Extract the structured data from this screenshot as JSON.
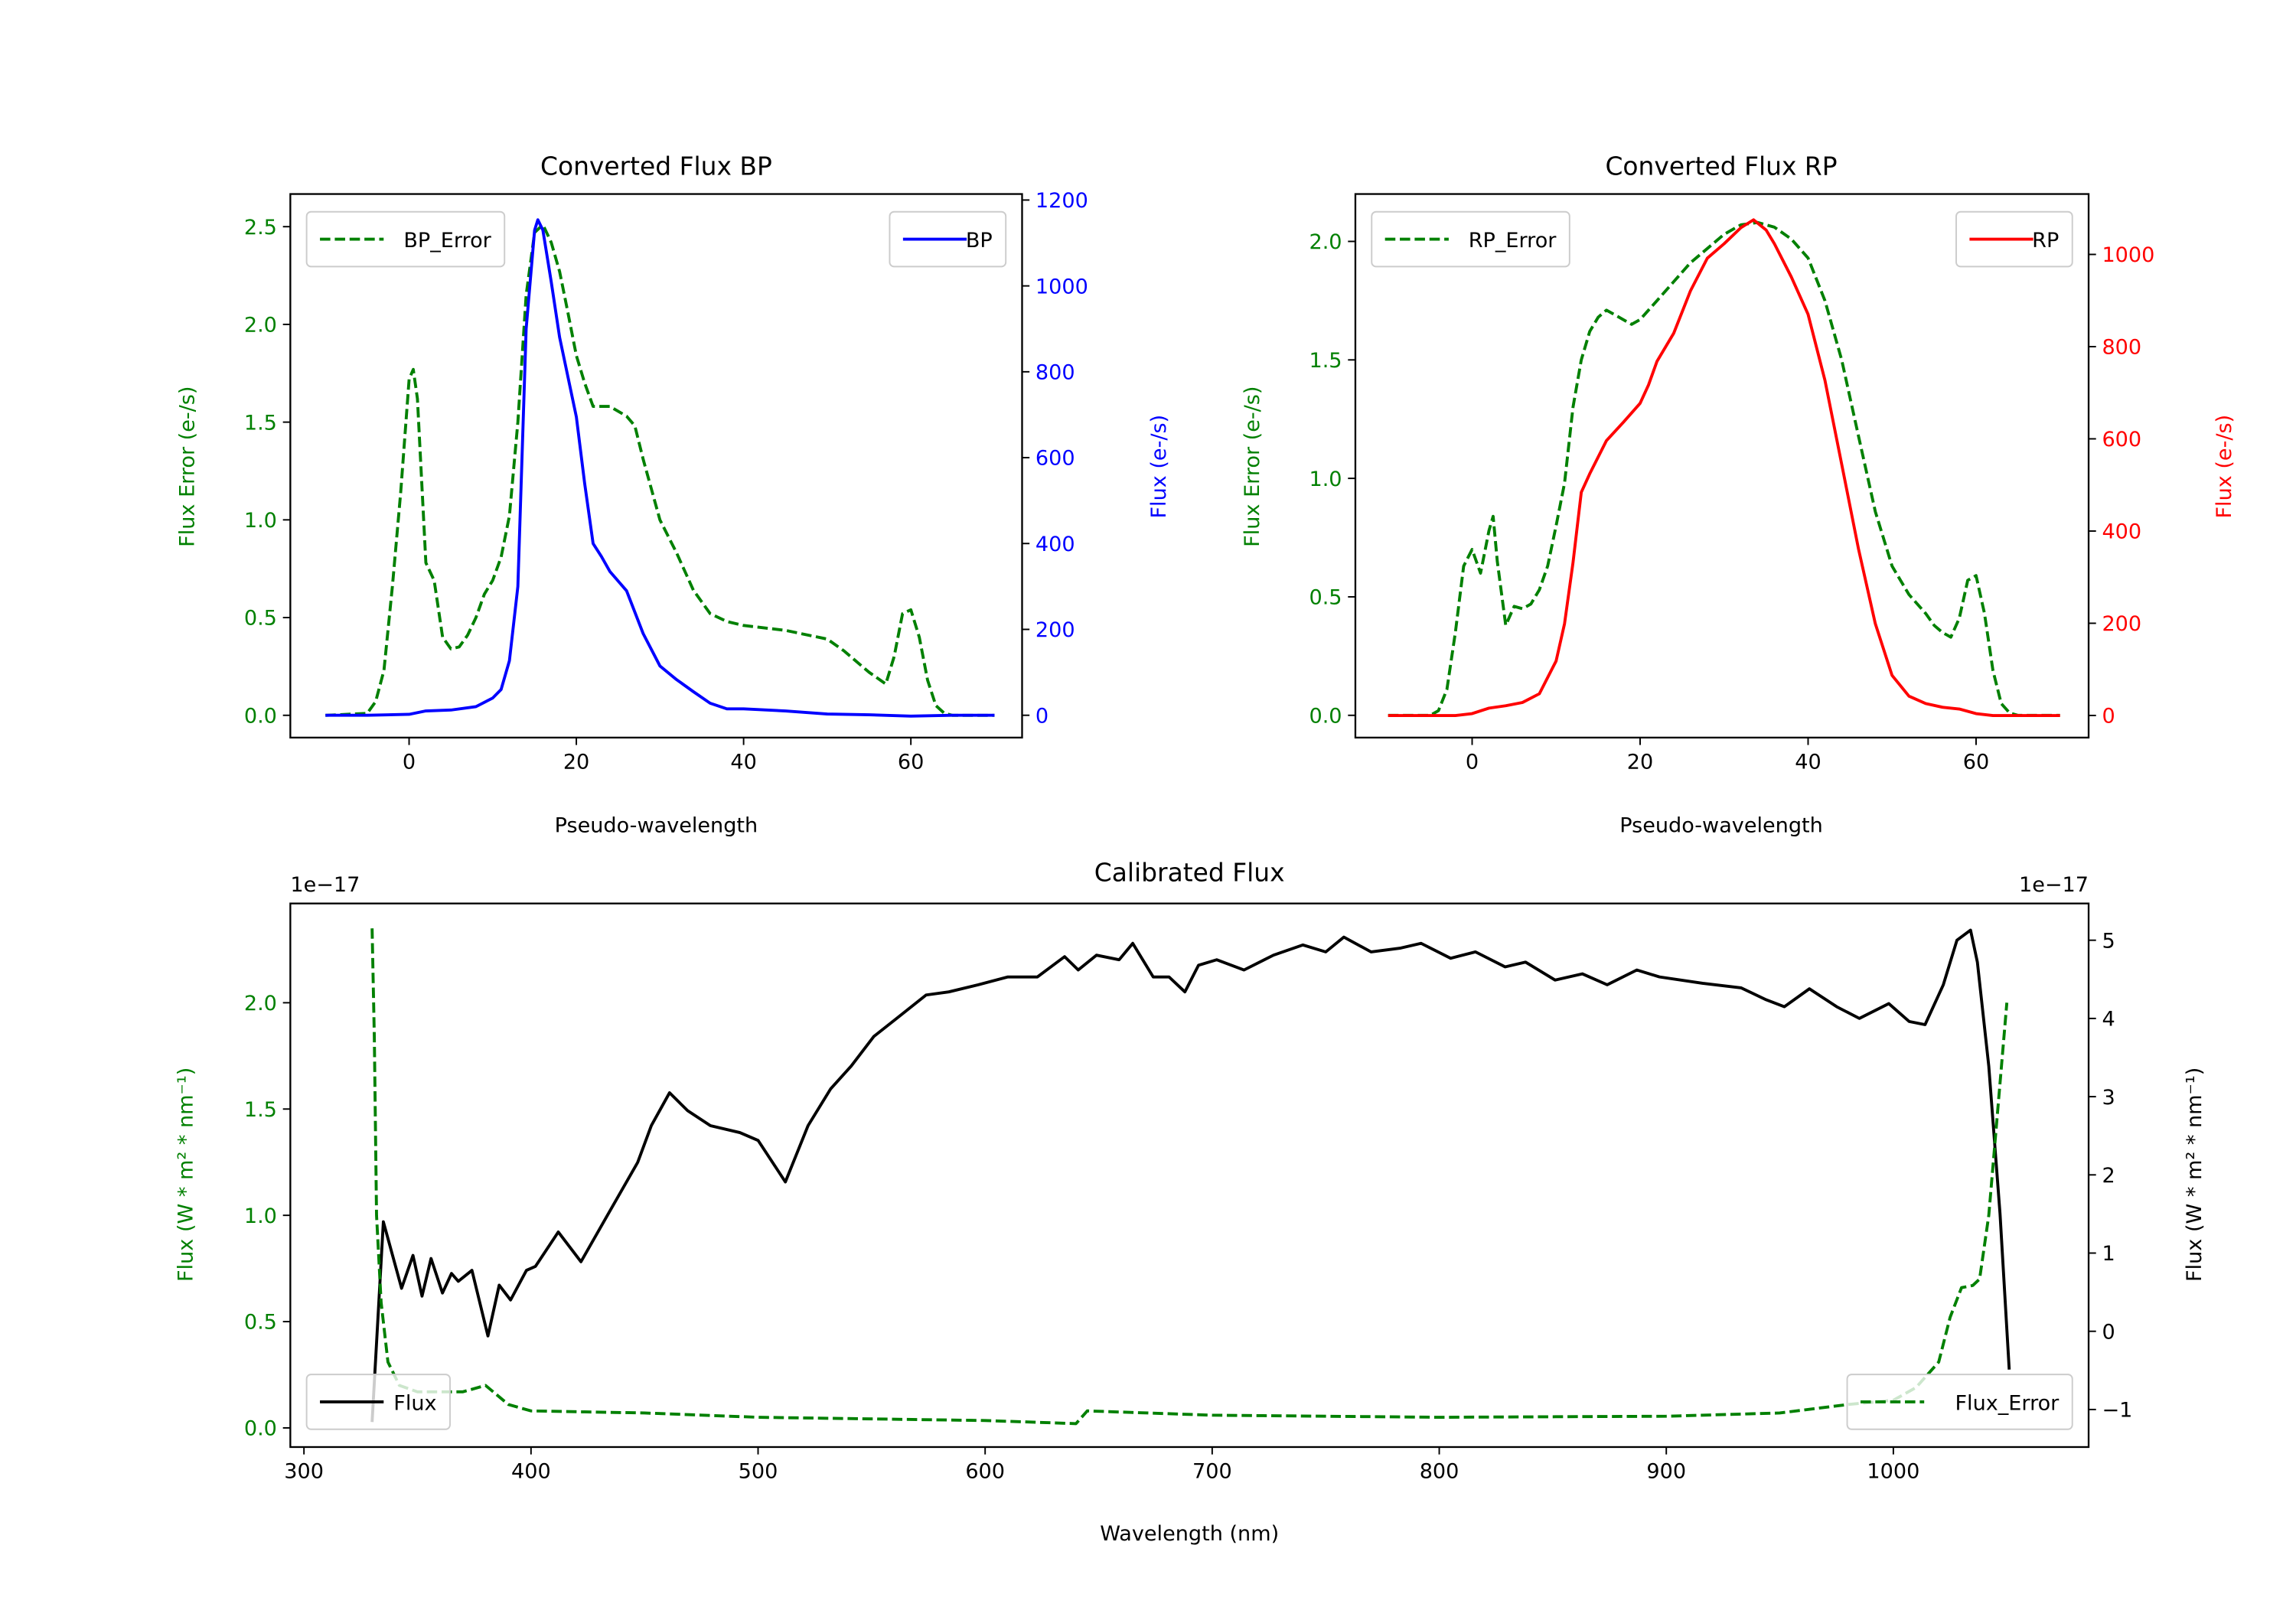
{
  "chart_data": [
    {
      "id": "bp",
      "type": "line",
      "title": "Converted Flux BP",
      "xlabel": "Pseudo-wavelength",
      "ylabel_left": "Flux Error (e-/s)",
      "ylabel_right": "Flux (e-/s)",
      "xlim": [
        -14.2,
        73.3
      ],
      "ylim_left": [
        -0.114,
        2.667
      ],
      "ylim_right": [
        -52,
        1214
      ],
      "xticks": [
        0,
        20,
        40,
        60
      ],
      "yticks_left": [
        "0.0",
        "0.5",
        "1.0",
        "1.5",
        "2.0",
        "2.5"
      ],
      "yticks_right": [
        "0",
        "200",
        "400",
        "600",
        "800",
        "1000",
        "1200"
      ],
      "left_color": "#008000",
      "right_color": "#0000ff",
      "series": [
        {
          "name": "BP_Error",
          "axis": "left",
          "style": "dashed",
          "color": "#008000",
          "legend": "upper-left",
          "x": [
            -10,
            -5,
            -4,
            -3,
            -2,
            -1,
            0,
            0.5,
            1,
            2,
            3,
            4,
            5,
            6,
            7,
            8,
            9,
            10,
            11,
            12,
            13,
            14,
            15,
            16,
            17,
            18,
            19,
            20,
            21,
            22,
            24,
            26,
            27,
            28,
            30,
            32,
            34,
            36,
            38,
            40,
            45,
            50,
            52,
            55,
            57,
            58,
            59,
            60,
            61,
            62,
            63,
            64,
            65,
            70
          ],
          "y": [
            0,
            0.01,
            0.07,
            0.23,
            0.66,
            1.14,
            1.72,
            1.77,
            1.62,
            0.78,
            0.69,
            0.4,
            0.34,
            0.35,
            0.41,
            0.5,
            0.62,
            0.69,
            0.81,
            1.02,
            1.5,
            2.15,
            2.47,
            2.51,
            2.42,
            2.27,
            2.06,
            1.84,
            1.7,
            1.58,
            1.58,
            1.53,
            1.48,
            1.31,
            1.0,
            0.83,
            0.64,
            0.52,
            0.48,
            0.46,
            0.435,
            0.39,
            0.33,
            0.22,
            0.16,
            0.3,
            0.52,
            0.54,
            0.4,
            0.18,
            0.05,
            0.01,
            0,
            0
          ]
        },
        {
          "name": "BP",
          "axis": "right",
          "style": "solid",
          "color": "#0000ff",
          "legend": "upper-right",
          "x": [
            -10,
            -5,
            0,
            2,
            5,
            8,
            10,
            11,
            12,
            13,
            14,
            15,
            15.4,
            16,
            17,
            18,
            20,
            21,
            22,
            23,
            24,
            26,
            28,
            30,
            32,
            34,
            36,
            38,
            40,
            45,
            50,
            55,
            60,
            65,
            70
          ],
          "y": [
            0,
            0,
            2,
            10,
            12,
            20,
            40,
            60,
            127,
            300,
            900,
            1130,
            1154,
            1130,
            1010,
            880,
            695,
            540,
            400,
            370,
            335,
            290,
            190,
            115,
            83,
            55,
            28,
            15,
            15,
            10,
            3,
            1,
            -2,
            0,
            0
          ]
        }
      ]
    },
    {
      "id": "rp",
      "type": "line",
      "title": "Converted Flux RP",
      "xlabel": "Pseudo-wavelength",
      "ylabel_left": "Flux Error (e-/s)",
      "ylabel_right": "Flux (e-/s)",
      "xlim": [
        -13.9,
        73.4
      ],
      "ylim_left": [
        -0.094,
        2.2
      ],
      "ylim_right": [
        -48,
        1131
      ],
      "xticks": [
        0,
        20,
        40,
        60
      ],
      "yticks_left": [
        "0.0",
        "0.5",
        "1.0",
        "1.5",
        "2.0"
      ],
      "yticks_right": [
        "0",
        "200",
        "400",
        "600",
        "800",
        "1000"
      ],
      "left_color": "#008000",
      "right_color": "#ff0000",
      "series": [
        {
          "name": "RP_Error",
          "axis": "left",
          "style": "dashed",
          "color": "#008000",
          "legend": "upper-left",
          "x": [
            -10,
            -5,
            -4,
            -3,
            -2,
            -1,
            0,
            1,
            2,
            2.5,
            3,
            4,
            5,
            6,
            7,
            8,
            9,
            10,
            11,
            12,
            13,
            14,
            15,
            16,
            17,
            19,
            20,
            22,
            24,
            26,
            28,
            30,
            32,
            34,
            36,
            38,
            40,
            42,
            44,
            46,
            48,
            50,
            52,
            54,
            55,
            56,
            57,
            58,
            59,
            60,
            61,
            62,
            63,
            64,
            65,
            70
          ],
          "y": [
            0,
            0,
            0.02,
            0.11,
            0.35,
            0.63,
            0.7,
            0.6,
            0.78,
            0.84,
            0.65,
            0.38,
            0.46,
            0.45,
            0.47,
            0.53,
            0.63,
            0.8,
            0.98,
            1.3,
            1.5,
            1.62,
            1.68,
            1.71,
            1.69,
            1.65,
            1.67,
            1.75,
            1.83,
            1.91,
            1.97,
            2.03,
            2.07,
            2.08,
            2.06,
            2.01,
            1.93,
            1.75,
            1.5,
            1.18,
            0.86,
            0.63,
            0.51,
            0.43,
            0.38,
            0.35,
            0.33,
            0.41,
            0.57,
            0.59,
            0.43,
            0.19,
            0.05,
            0.01,
            0,
            0
          ]
        },
        {
          "name": "RP",
          "axis": "right",
          "style": "solid",
          "color": "#ff0000",
          "legend": "upper-right",
          "x": [
            -10,
            -2,
            0,
            2,
            4,
            6,
            8,
            10,
            11,
            12,
            13,
            14,
            16,
            18,
            20,
            21,
            22,
            24,
            26,
            28,
            30,
            32,
            33.5,
            35,
            36,
            38,
            40,
            42,
            44,
            46,
            48,
            50,
            52,
            54,
            56,
            58,
            60,
            62,
            70
          ],
          "y": [
            0,
            0,
            4,
            16,
            21,
            28,
            47,
            118,
            199,
            331,
            484,
            524,
            596,
            636,
            677,
            717,
            768,
            829,
            921,
            992,
            1023,
            1058,
            1075,
            1053,
            1023,
            951,
            870,
            727,
            545,
            362,
            199,
            87,
            42,
            26,
            18,
            14,
            4,
            0,
            0
          ]
        }
      ]
    },
    {
      "id": "cal",
      "type": "line",
      "title": "Calibrated Flux",
      "xlabel": "Wavelength (nm)",
      "ylabel_left": "Flux (W * m² * nm⁻¹)",
      "ylabel_right": "Flux (W * m² * nm⁻¹)",
      "offset_left": "1e−17",
      "offset_right": "1e−17",
      "xlim": [
        294,
        1086
      ],
      "ylim_left": [
        -0.09,
        2.467
      ],
      "ylim_right": [
        -1.48,
        5.47
      ],
      "xticks": [
        300,
        400,
        500,
        600,
        700,
        800,
        900,
        1000
      ],
      "yticks_left": [
        "0.0",
        "0.5",
        "1.0",
        "1.5",
        "2.0"
      ],
      "yticks_right": [
        "−1",
        "0",
        "1",
        "2",
        "3",
        "4",
        "5"
      ],
      "left_color": "#008000",
      "right_color": "#000000",
      "series": [
        {
          "name": "Flux",
          "axis": "right",
          "style": "solid",
          "color": "#000000",
          "legend": "lower-left",
          "x": [
            330,
            335,
            343,
            348,
            352,
            356,
            361,
            365,
            368,
            374,
            381,
            386,
            391,
            398,
            402,
            412,
            422,
            434,
            447,
            453,
            461,
            469,
            479,
            492,
            500,
            512,
            522,
            532,
            541,
            551,
            561,
            574,
            584,
            597,
            610,
            623,
            635,
            641,
            649,
            659,
            665,
            674,
            681,
            688,
            694,
            702,
            714,
            727,
            740,
            750,
            758,
            770,
            783,
            792,
            805,
            816,
            829,
            838,
            851,
            863,
            874,
            887,
            897,
            916,
            933,
            944,
            952,
            963,
            975,
            985,
            998,
            1007,
            1014,
            1022,
            1028,
            1034,
            1037,
            1042,
            1047,
            1051
          ],
          "y": [
            -1.16,
            1.4,
            0.55,
            0.97,
            0.45,
            0.93,
            0.49,
            0.74,
            0.64,
            0.78,
            -0.06,
            0.59,
            0.4,
            0.78,
            0.83,
            1.27,
            0.89,
            1.5,
            2.16,
            2.63,
            3.05,
            2.82,
            2.63,
            2.54,
            2.44,
            1.91,
            2.63,
            3.1,
            3.39,
            3.77,
            4.0,
            4.3,
            4.34,
            4.43,
            4.53,
            4.53,
            4.79,
            4.62,
            4.81,
            4.75,
            4.96,
            4.53,
            4.53,
            4.34,
            4.68,
            4.75,
            4.62,
            4.81,
            4.94,
            4.85,
            5.04,
            4.85,
            4.9,
            4.96,
            4.77,
            4.85,
            4.66,
            4.72,
            4.49,
            4.57,
            4.43,
            4.62,
            4.53,
            4.45,
            4.39,
            4.24,
            4.15,
            4.38,
            4.15,
            4.0,
            4.19,
            3.96,
            3.92,
            4.43,
            5.0,
            5.13,
            4.72,
            3.39,
            1.5,
            -0.49
          ]
        },
        {
          "name": "Flux_Error",
          "axis": "left",
          "style": "dashed",
          "color": "#008000",
          "legend": "lower-right",
          "x": [
            330,
            331,
            332,
            334,
            337,
            342,
            350,
            370,
            380,
            390,
            400,
            450,
            500,
            600,
            640,
            645,
            700,
            800,
            900,
            950,
            980,
            1000,
            1010,
            1020,
            1025,
            1030,
            1035,
            1038,
            1042,
            1046,
            1050
          ],
          "y": [
            2.35,
            1.84,
            1.0,
            0.59,
            0.31,
            0.2,
            0.17,
            0.17,
            0.2,
            0.11,
            0.08,
            0.07,
            0.05,
            0.035,
            0.02,
            0.08,
            0.06,
            0.05,
            0.055,
            0.07,
            0.11,
            0.13,
            0.19,
            0.31,
            0.52,
            0.66,
            0.67,
            0.7,
            1.0,
            1.5,
            2.0
          ]
        }
      ]
    }
  ]
}
